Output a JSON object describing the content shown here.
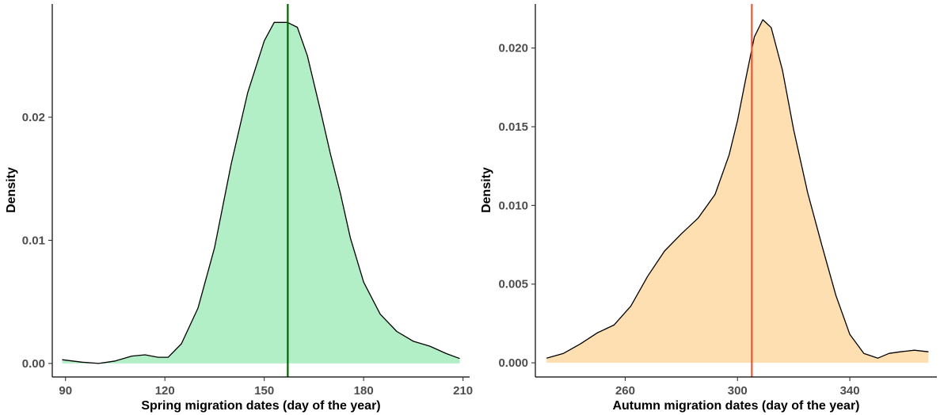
{
  "chart_data": [
    {
      "type": "area",
      "xlabel": "Spring migration dates (day of the year)",
      "ylabel": "Density",
      "xlim": [
        86,
        212
      ],
      "ylim": [
        -0.0011,
        0.0292
      ],
      "xticks": [
        90,
        120,
        150,
        180,
        210
      ],
      "yticks": [
        0.0,
        0.01,
        0.02
      ],
      "ytick_labels": [
        "0.00",
        "0.01",
        "0.02"
      ],
      "grid": false,
      "fill_color": "#b2efc7",
      "line_color": "#000000",
      "vline": {
        "x": 157.1,
        "color": "#006400"
      },
      "x": [
        89,
        95,
        100,
        105,
        110,
        114,
        118,
        121,
        125,
        130,
        135,
        140,
        145,
        150,
        153,
        157,
        160,
        163,
        167,
        170,
        173,
        176,
        180,
        185,
        190,
        195,
        200,
        205,
        209
      ],
      "y": [
        0.0003,
        0.0001,
        0.0,
        0.0002,
        0.0006,
        0.0007,
        0.0005,
        0.0005,
        0.0016,
        0.0045,
        0.0094,
        0.0162,
        0.022,
        0.0262,
        0.0277,
        0.0277,
        0.0273,
        0.025,
        0.0205,
        0.017,
        0.0138,
        0.0102,
        0.0066,
        0.004,
        0.0026,
        0.0018,
        0.0014,
        0.0008,
        0.0004
      ]
    },
    {
      "type": "area",
      "xlabel": "Autumn migration dates (day of the year)",
      "ylabel": "Density",
      "xlim": [
        228,
        371
      ],
      "ylim": [
        -0.0009,
        0.0228
      ],
      "xticks": [
        260,
        300,
        340
      ],
      "yticks": [
        0.0,
        0.005,
        0.01,
        0.015,
        0.02
      ],
      "ytick_labels": [
        "0.000",
        "0.005",
        "0.010",
        "0.015",
        "0.020"
      ],
      "grid": false,
      "fill_color": "#fddfb1",
      "line_color": "#000000",
      "vline": {
        "x": 305.1,
        "color": "#e05a3a"
      },
      "x": [
        232,
        238,
        244,
        250,
        256,
        262,
        268,
        274,
        280,
        286,
        292,
        297,
        300,
        303,
        306,
        309,
        312,
        316,
        320,
        325,
        330,
        335,
        340,
        345,
        350,
        354,
        358,
        363,
        368
      ],
      "y": [
        0.0003,
        0.0006,
        0.0012,
        0.0019,
        0.0024,
        0.0036,
        0.0055,
        0.0071,
        0.0082,
        0.0092,
        0.0107,
        0.0132,
        0.0154,
        0.0181,
        0.0207,
        0.0218,
        0.0213,
        0.0186,
        0.0148,
        0.0108,
        0.0075,
        0.0043,
        0.0018,
        0.0006,
        0.0003,
        0.0006,
        0.0007,
        0.0008,
        0.0007
      ]
    }
  ]
}
